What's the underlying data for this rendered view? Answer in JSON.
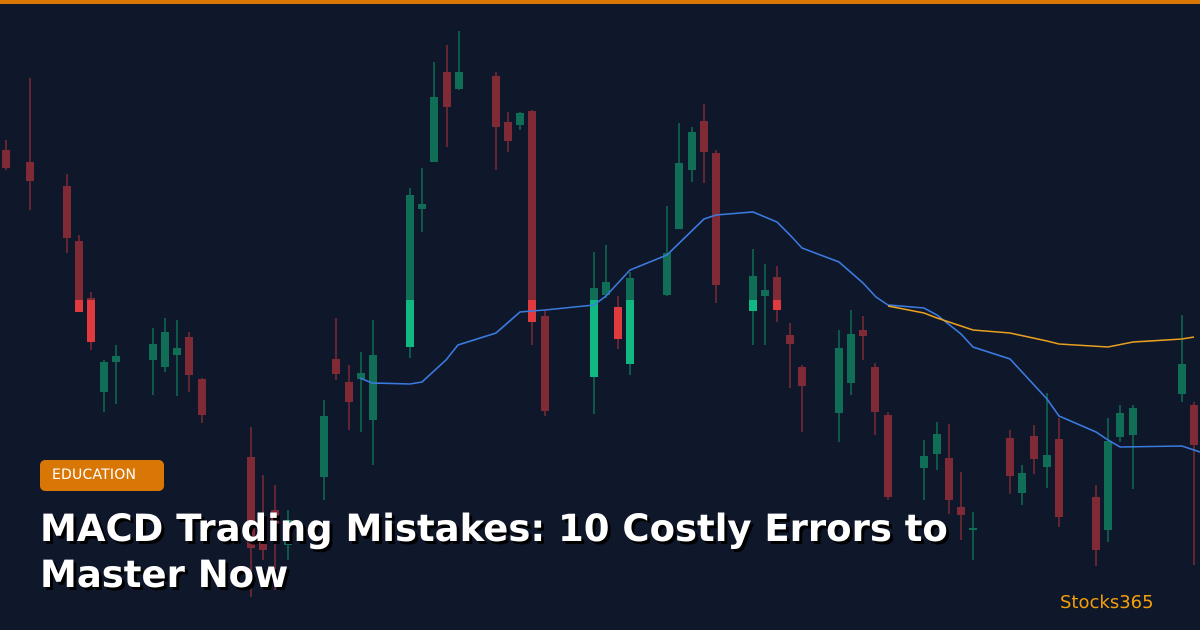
{
  "colors": {
    "background": "#0f172a",
    "accent": "#d97706",
    "bull_dim": "#0f6e55",
    "bull_bright": "#10b981",
    "bear_dim": "#7f2a35",
    "bear_bright": "#e03a3e",
    "line_blue": "#3b7be0",
    "line_orange": "#e8a020",
    "brand": "#f59e0b"
  },
  "badge": {
    "label": "EDUCATION"
  },
  "title": "MACD Trading Mistakes: 10 Costly Errors to Master Now",
  "brand": {
    "name": "Stocks365"
  }
}
